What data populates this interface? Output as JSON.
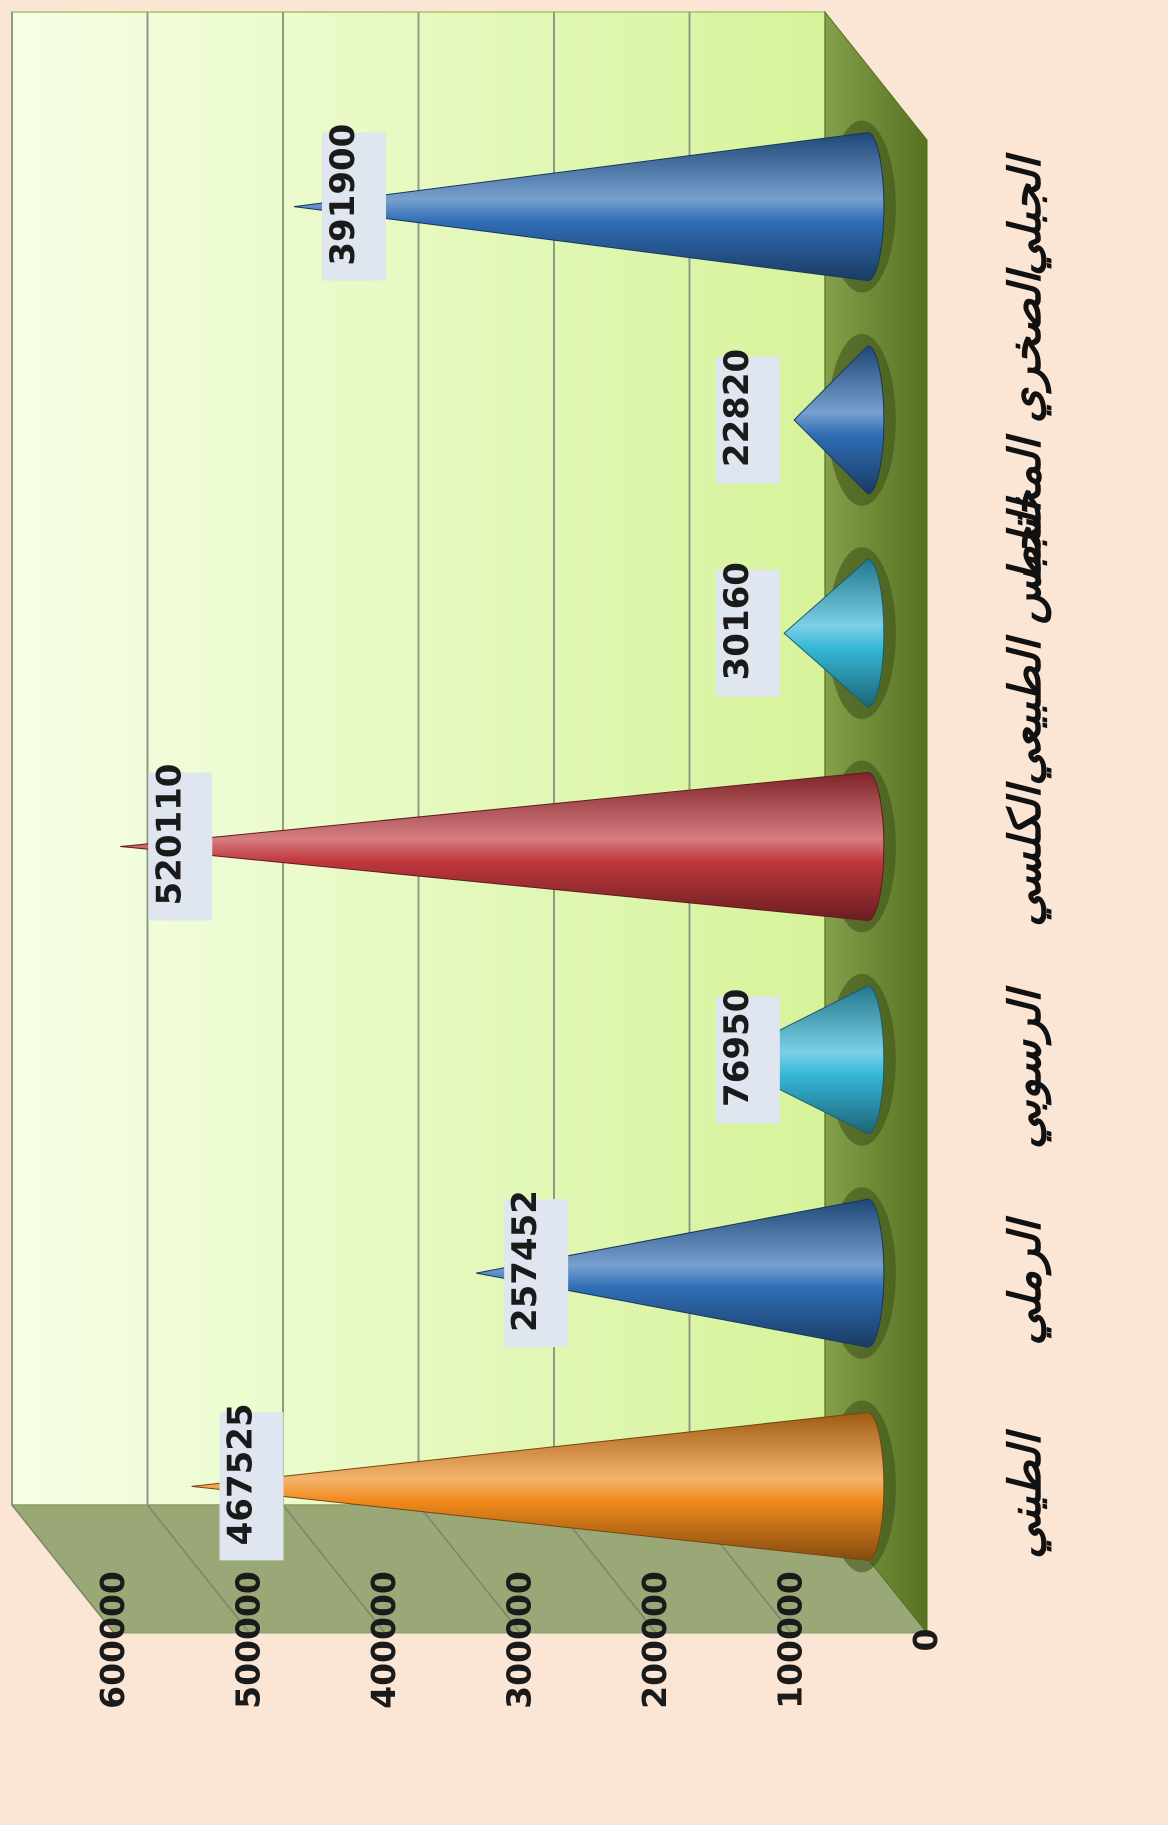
{
  "chart_data": {
    "type": "bar",
    "bar_shape": "cone",
    "orientation": "rotated-90-clockwise",
    "categories": [
      "الطيني",
      "الرملي",
      "الرسوبي",
      "الكلسي",
      "الجبس الطبيعي",
      "الصخري المختلط",
      "الجبلي"
    ],
    "values": [
      467525,
      257452,
      76950,
      520110,
      30160,
      22820,
      391900
    ],
    "value_labels": [
      "467525",
      "257452",
      "76950",
      "520110",
      "30160",
      "22820",
      "391900"
    ],
    "colors": [
      "#f08a1c",
      "#2f6db5",
      "#35b7d8",
      "#c0373d",
      "#35b7d8",
      "#2f6db5",
      "#2f6db5"
    ],
    "ylim": [
      0,
      600000
    ],
    "y_ticks": [
      "0",
      "100000",
      "200000",
      "300000",
      "400000",
      "500000",
      "600000"
    ],
    "title": "",
    "xlabel": "",
    "ylabel": "",
    "grid": true,
    "legend": "none",
    "background_colors": {
      "page": "#fbe6d6",
      "wall_light": "#f6ffe6",
      "wall_dark": "#d6f39a",
      "floor": "#6d8f2a",
      "side_wall": "#9aa877",
      "label_box": "#dfe6ef"
    }
  }
}
